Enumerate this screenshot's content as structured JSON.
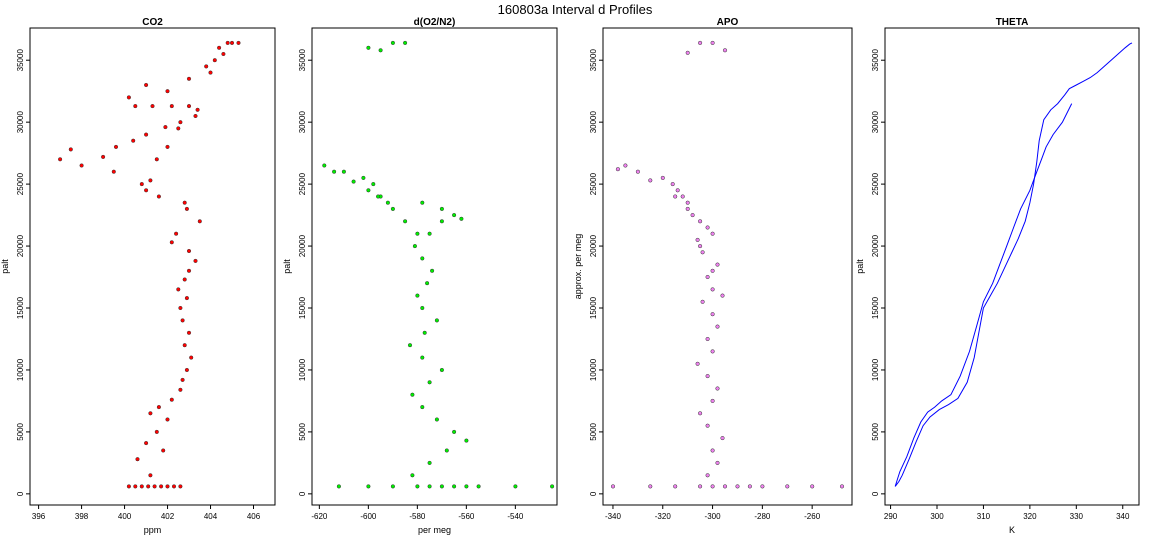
{
  "title": "160803a   Interval d Profiles",
  "colors": {
    "co2": "#ff0000",
    "o2n2": "#00ee00",
    "apo": "#ee82ee",
    "theta": "#0000ff",
    "outline": "#000000"
  },
  "chart_data": [
    {
      "type": "scatter",
      "title": "CO2",
      "xlabel": "ppm",
      "ylabel": "palt",
      "xlim": [
        395.6,
        407.0
      ],
      "ylim": [
        -900,
        37600
      ],
      "xticks": [
        396,
        398,
        400,
        402,
        404,
        406
      ],
      "yticks": [
        0,
        5000,
        10000,
        15000,
        20000,
        25000,
        30000,
        35000
      ],
      "series": [
        {
          "x": [
            400.2,
            400.5,
            400.8,
            401.1,
            401.4,
            401.7,
            402.0,
            402.3,
            402.6,
            401.2,
            400.6,
            401.8,
            401.0,
            401.5,
            402.0,
            401.2,
            401.6,
            402.2,
            402.6,
            402.7,
            402.9,
            403.1,
            402.8,
            403.0,
            402.7,
            402.6,
            402.9,
            402.5,
            402.8,
            403.0,
            403.3,
            403.0,
            402.2,
            402.4,
            403.5,
            402.9,
            402.8,
            401.6,
            401.0,
            400.8,
            401.2,
            399.5,
            398.0,
            397.0,
            397.5,
            399.0,
            399.6,
            400.4,
            401.0,
            401.9,
            402.6,
            403.3,
            403.4,
            402.5,
            402.0,
            401.5,
            400.5,
            401.3,
            402.2,
            403.0,
            400.2,
            401.0,
            402.0,
            403.0,
            404.0,
            403.8,
            404.2,
            404.6,
            404.4,
            405.0,
            404.8,
            405.3
          ],
          "y": [
            600,
            600,
            600,
            600,
            600,
            600,
            600,
            600,
            600,
            1500,
            2800,
            3500,
            4100,
            5000,
            6000,
            6500,
            7000,
            7600,
            8400,
            9200,
            10000,
            11000,
            12000,
            13000,
            14000,
            15000,
            15800,
            16500,
            17300,
            18000,
            18800,
            19600,
            20300,
            21000,
            22000,
            23000,
            23500,
            24000,
            24500,
            25000,
            25300,
            26000,
            26500,
            27000,
            27800,
            27200,
            28000,
            28500,
            29000,
            29600,
            30000,
            30500,
            31000,
            29500,
            28000,
            27000,
            31300,
            31300,
            31300,
            31300,
            32000,
            33000,
            32500,
            33500,
            34000,
            34500,
            35000,
            35500,
            36000,
            36400,
            36400,
            36400
          ]
        }
      ]
    },
    {
      "type": "scatter",
      "title": "d(O2/N2)",
      "xlabel": "per meg",
      "ylabel": "palt",
      "xlim": [
        -623,
        -523
      ],
      "ylim": [
        -900,
        37600
      ],
      "xticks": [
        -620,
        -600,
        -580,
        -560,
        -540
      ],
      "yticks": [
        0,
        5000,
        10000,
        15000,
        20000,
        25000,
        30000,
        35000
      ],
      "series": [
        {
          "x": [
            -612,
            -600,
            -590,
            -580,
            -575,
            -570,
            -565,
            -560,
            -555,
            -540,
            -525,
            -582,
            -575,
            -568,
            -560,
            -565,
            -572,
            -578,
            -582,
            -575,
            -570,
            -578,
            -583,
            -577,
            -572,
            -578,
            -580,
            -576,
            -574,
            -578,
            -581,
            -575,
            -570,
            -565,
            -562,
            -570,
            -578,
            -590,
            -595,
            -598,
            -602,
            -610,
            -618,
            -614,
            -606,
            -600,
            -596,
            -592,
            -585,
            -580,
            -590,
            -585,
            -595,
            -600
          ],
          "y": [
            600,
            600,
            600,
            600,
            600,
            600,
            600,
            600,
            600,
            600,
            600,
            1500,
            2500,
            3500,
            4300,
            5000,
            6000,
            7000,
            8000,
            9000,
            10000,
            11000,
            12000,
            13000,
            14000,
            15000,
            16000,
            17000,
            18000,
            19000,
            20000,
            21000,
            22000,
            22500,
            22200,
            23000,
            23500,
            23000,
            24000,
            25000,
            25500,
            26000,
            26500,
            26000,
            25200,
            24500,
            24000,
            23500,
            22000,
            21000,
            36400,
            36400,
            35800,
            36000
          ]
        }
      ]
    },
    {
      "type": "scatter",
      "title": "APO",
      "xlabel": "",
      "ylabel": "approx. per meg",
      "xlim": [
        -344,
        -244
      ],
      "ylim": [
        -900,
        37600
      ],
      "xticks": [
        -340,
        -320,
        -300,
        -280,
        -260
      ],
      "yticks": [
        0,
        5000,
        10000,
        15000,
        20000,
        25000,
        30000,
        35000
      ],
      "series": [
        {
          "x": [
            -340,
            -325,
            -315,
            -305,
            -300,
            -295,
            -290,
            -285,
            -280,
            -270,
            -260,
            -248,
            -302,
            -298,
            -300,
            -296,
            -302,
            -305,
            -300,
            -298,
            -302,
            -306,
            -300,
            -302,
            -298,
            -300,
            -304,
            -300,
            -302,
            -298,
            -304,
            -306,
            -302,
            -308,
            -310,
            -312,
            -314,
            -316,
            -320,
            -330,
            -335,
            -338,
            -325,
            -315,
            -305,
            -300,
            -310,
            -305,
            -300,
            -296,
            -305,
            -300,
            -295,
            -310
          ],
          "y": [
            600,
            600,
            600,
            600,
            600,
            600,
            600,
            600,
            600,
            600,
            600,
            600,
            1500,
            2500,
            3500,
            4500,
            5500,
            6500,
            7500,
            8500,
            9500,
            10500,
            11500,
            12500,
            13500,
            14500,
            15500,
            16500,
            17500,
            18500,
            19500,
            20500,
            21500,
            22500,
            23500,
            24000,
            24500,
            25000,
            25500,
            26000,
            26500,
            26200,
            25300,
            24000,
            22000,
            21000,
            23000,
            20000,
            18000,
            16000,
            36400,
            36400,
            35800,
            35600
          ]
        }
      ]
    },
    {
      "type": "line",
      "title": "THETA",
      "xlabel": "K",
      "ylabel": "palt",
      "xlim": [
        288.8,
        343.5
      ],
      "ylim": [
        -900,
        37600
      ],
      "xticks": [
        290,
        300,
        310,
        320,
        330,
        340
      ],
      "yticks": [
        0,
        5000,
        10000,
        15000,
        20000,
        25000,
        30000,
        35000
      ],
      "series": [
        {
          "x": [
            291.0,
            291.5,
            292.0,
            293.5,
            295.0,
            296.5,
            298.0,
            299.5,
            301.0,
            303.0,
            305.0,
            307.0,
            308.5,
            310.0,
            312.0,
            313.5,
            315.0,
            316.5,
            318.0,
            320.0,
            321.5,
            322.5,
            323.5,
            325.0,
            327.0,
            329.0
          ],
          "y": [
            600,
            1200,
            1800,
            3000,
            4500,
            5800,
            6600,
            7000,
            7500,
            8000,
            9500,
            11500,
            13500,
            15500,
            17000,
            18500,
            20000,
            21500,
            23000,
            24500,
            26000,
            27000,
            28000,
            29000,
            30000,
            31500
          ]
        },
        {
          "x": [
            291.0,
            291.8,
            292.5,
            294.0,
            295.5,
            297.0,
            298.5,
            300.5,
            302.5,
            304.5,
            306.5,
            308.0,
            309.0,
            310.0,
            311.5,
            313.0,
            314.5,
            316.0,
            317.5,
            319.0,
            320.0,
            320.8,
            321.5,
            322.0,
            323.0,
            324.5,
            326.0,
            327.5,
            328.5,
            330.0,
            331.5,
            333.0,
            334.5,
            336.0,
            337.5,
            339.0,
            340.5,
            341.5,
            342.0
          ],
          "y": [
            600,
            1000,
            1500,
            2800,
            4200,
            5500,
            6200,
            6800,
            7200,
            7700,
            9000,
            11000,
            13000,
            15000,
            16000,
            17000,
            18200,
            19400,
            20600,
            22000,
            23500,
            25000,
            26800,
            28500,
            30200,
            31000,
            31500,
            32200,
            32700,
            33000,
            33300,
            33600,
            34000,
            34500,
            35000,
            35500,
            36000,
            36300,
            36400
          ]
        }
      ]
    }
  ]
}
